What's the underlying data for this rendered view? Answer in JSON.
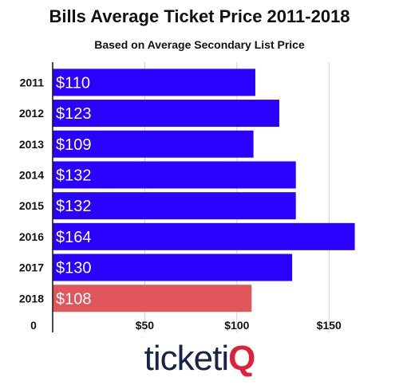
{
  "title": "Bills Average Ticket Price 2011-2018",
  "subtitle": "Based on Average Secondary List Price",
  "logo": {
    "main": "ticketi",
    "accent": "Q"
  },
  "colors": {
    "bar": "#2a00ff",
    "highlight": "#e0565a",
    "grid": "#d0d0d0",
    "axis": "#111111",
    "bar_label": "#ffffff"
  },
  "chart_data": {
    "type": "bar",
    "orientation": "horizontal",
    "title": "Bills Average Ticket Price 2011-2018",
    "subtitle": "Based on Average Secondary List Price",
    "categories": [
      "2011",
      "2012",
      "2013",
      "2014",
      "2015",
      "2016",
      "2017",
      "2018"
    ],
    "values": [
      110,
      123,
      109,
      132,
      132,
      164,
      130,
      108
    ],
    "data_labels": [
      "$110",
      "$123",
      "$109",
      "$132",
      "$132",
      "$164",
      "$130",
      "$108"
    ],
    "highlight_category": "2018",
    "xlim": [
      0,
      175
    ],
    "x_ticks": [
      0,
      50,
      100,
      150
    ],
    "x_tick_labels": [
      "0",
      "$50",
      "$100",
      "$150"
    ],
    "grid": true,
    "legend": "none"
  }
}
